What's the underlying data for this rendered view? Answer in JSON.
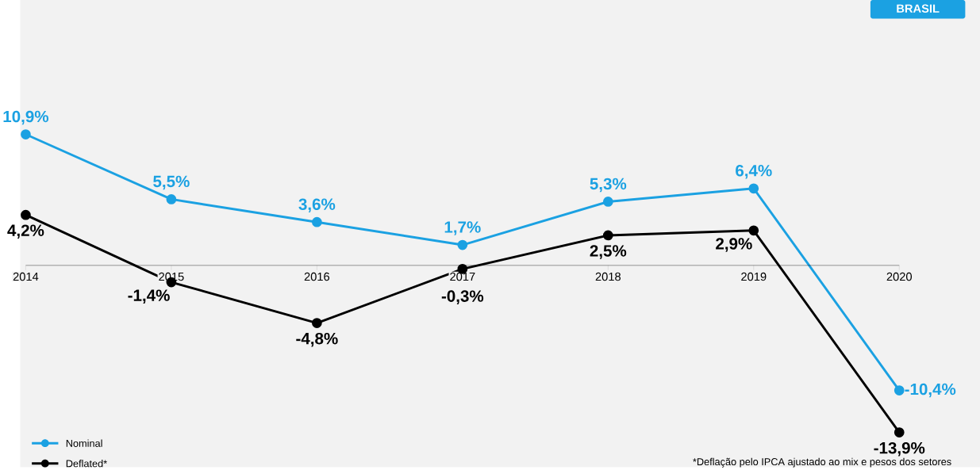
{
  "chart_data": {
    "type": "line",
    "categories": [
      "2014",
      "2015",
      "2016",
      "2017",
      "2018",
      "2019",
      "2020"
    ],
    "series": [
      {
        "name": "Nominal",
        "color": "#1ba1e2",
        "values": [
          10.9,
          5.5,
          3.6,
          1.7,
          5.3,
          6.4,
          -10.4
        ],
        "value_labels": [
          "10,9%",
          "5,5%",
          "3,6%",
          "1,7%",
          "5,3%",
          "6,4%",
          "-10,4%"
        ]
      },
      {
        "name": "Deflated*",
        "color": "#000000",
        "values": [
          4.2,
          -1.4,
          -4.8,
          -0.3,
          2.5,
          2.9,
          -13.9
        ],
        "value_labels": [
          "4,2%",
          "-1,4%",
          "-4,8%",
          "-0,3%",
          "2,5%",
          "2,9%",
          "-13,9%"
        ]
      }
    ],
    "annotations": [
      "BRASIL",
      "*Deflação pelo IPCA ajustado ao mix e pesos dos setores"
    ],
    "marker": "circle",
    "line_style": "solid",
    "legend": "bottom left",
    "grid": false,
    "tick_labels": "x"
  }
}
